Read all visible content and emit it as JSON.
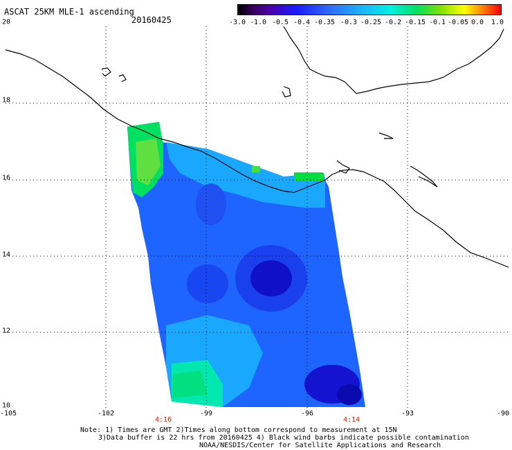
{
  "title": "ASCAT 25KM MLE-1 ascending",
  "date": "20160425",
  "colorbar": {
    "ticks": [
      "-3.0",
      "-1.0",
      "-0.5",
      "-0.4",
      "-0.35",
      "-0.3",
      "-0.25",
      "-0.2",
      "-0.15",
      "-0.1",
      "-0.05",
      "0.0",
      "1.0"
    ],
    "colors": [
      "#000000",
      "#4b00a8",
      "#1a1aff",
      "#2f6cff",
      "#1ab4ff",
      "#00f0e0",
      "#00e060",
      "#80e000",
      "#ffff00",
      "#ff8000",
      "#ff0000"
    ]
  },
  "axes": {
    "lat_labels": [
      "20",
      "18",
      "16",
      "14",
      "12",
      "10"
    ],
    "lon_labels": [
      "-105",
      "-102",
      "-99",
      "-96",
      "-93",
      "-90"
    ],
    "time_labels": [
      "4:16",
      "4:14"
    ]
  },
  "notes": {
    "line1": "Note: 1) Times are GMT 2)Times along bottom correspond to measurement at 15N",
    "line2": "3)Data buffer is 22 hrs from 20160425 4) Black wind barbs indicate possible contamination",
    "line3": "NOAA/NESDIS/Center for Satellite Applications and Research"
  },
  "map": {
    "lat_range": [
      10,
      20
    ],
    "lon_range": [
      -105,
      -90
    ],
    "grid": true,
    "swath_color_mid": "#1e64ff",
    "swath_color_low": "#1010c8",
    "swath_color_high": "#00e060"
  }
}
